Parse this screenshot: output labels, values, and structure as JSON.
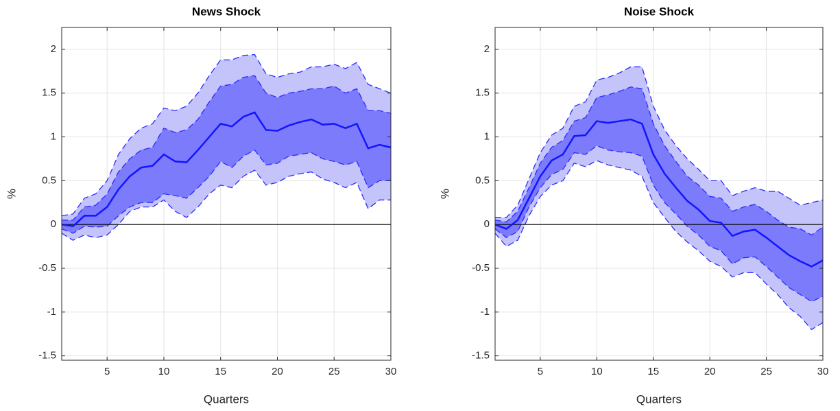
{
  "chart_data": [
    {
      "type": "line",
      "title": "News Shock",
      "xlabel": "Quarters",
      "ylabel": "%",
      "x": [
        1,
        2,
        3,
        4,
        5,
        6,
        7,
        8,
        9,
        10,
        11,
        12,
        13,
        14,
        15,
        16,
        17,
        18,
        19,
        20,
        21,
        22,
        23,
        24,
        25,
        26,
        27,
        28,
        29,
        30
      ],
      "xlim": [
        1,
        30
      ],
      "xticks": [
        5,
        10,
        15,
        20,
        25,
        30
      ],
      "ylim": [
        -1.55,
        2.25
      ],
      "yticks": [
        -1.5,
        -1,
        -0.5,
        0,
        0.5,
        1,
        1.5,
        2
      ],
      "grid": true,
      "hline": 0,
      "bands": [
        {
          "color": "#c4c4fb",
          "upper": [
            0.1,
            0.12,
            0.3,
            0.35,
            0.5,
            0.8,
            0.98,
            1.1,
            1.15,
            1.33,
            1.3,
            1.35,
            1.5,
            1.7,
            1.88,
            1.88,
            1.93,
            1.94,
            1.72,
            1.68,
            1.72,
            1.74,
            1.8,
            1.8,
            1.83,
            1.78,
            1.85,
            1.6,
            1.55,
            1.5
          ],
          "lower": [
            -0.1,
            -0.18,
            -0.12,
            -0.15,
            -0.12,
            0.0,
            0.15,
            0.2,
            0.2,
            0.28,
            0.15,
            0.08,
            0.2,
            0.35,
            0.45,
            0.42,
            0.55,
            0.62,
            0.45,
            0.48,
            0.55,
            0.58,
            0.6,
            0.52,
            0.48,
            0.42,
            0.48,
            0.18,
            0.28,
            0.28
          ]
        },
        {
          "color": "#7b7bfb",
          "upper": [
            0.05,
            0.05,
            0.2,
            0.22,
            0.35,
            0.6,
            0.75,
            0.85,
            0.88,
            1.1,
            1.05,
            1.08,
            1.2,
            1.4,
            1.58,
            1.6,
            1.68,
            1.7,
            1.5,
            1.45,
            1.5,
            1.52,
            1.55,
            1.55,
            1.58,
            1.5,
            1.55,
            1.3,
            1.3,
            1.27
          ],
          "lower": [
            -0.05,
            -0.1,
            -0.02,
            -0.03,
            -0.02,
            0.1,
            0.2,
            0.25,
            0.25,
            0.35,
            0.33,
            0.3,
            0.42,
            0.55,
            0.72,
            0.65,
            0.78,
            0.85,
            0.68,
            0.7,
            0.78,
            0.8,
            0.82,
            0.75,
            0.72,
            0.68,
            0.72,
            0.42,
            0.5,
            0.5
          ]
        }
      ],
      "band_edge_color": "#2a2aff",
      "series": [
        {
          "color": "#1414ff",
          "values": [
            0,
            -0.02,
            0.1,
            0.1,
            0.2,
            0.4,
            0.55,
            0.65,
            0.67,
            0.8,
            0.72,
            0.71,
            0.85,
            1.0,
            1.15,
            1.12,
            1.23,
            1.28,
            1.08,
            1.07,
            1.13,
            1.17,
            1.2,
            1.14,
            1.15,
            1.1,
            1.15,
            0.87,
            0.91,
            0.88
          ]
        }
      ]
    },
    {
      "type": "line",
      "title": "Noise Shock",
      "xlabel": "Quarters",
      "ylabel": "%",
      "x": [
        1,
        2,
        3,
        4,
        5,
        6,
        7,
        8,
        9,
        10,
        11,
        12,
        13,
        14,
        15,
        16,
        17,
        18,
        19,
        20,
        21,
        22,
        23,
        24,
        25,
        26,
        27,
        28,
        29,
        30
      ],
      "xlim": [
        1,
        30
      ],
      "xticks": [
        5,
        10,
        15,
        20,
        25,
        30
      ],
      "ylim": [
        -1.55,
        2.25
      ],
      "yticks": [
        -1.5,
        -1,
        -0.5,
        0,
        0.5,
        1,
        1.5,
        2
      ],
      "grid": true,
      "hline": 0,
      "bands": [
        {
          "color": "#c4c4fb",
          "upper": [
            0.08,
            0.08,
            0.22,
            0.52,
            0.82,
            1.02,
            1.1,
            1.35,
            1.4,
            1.65,
            1.68,
            1.73,
            1.8,
            1.8,
            1.35,
            1.08,
            0.9,
            0.75,
            0.63,
            0.5,
            0.5,
            0.33,
            0.38,
            0.42,
            0.38,
            0.38,
            0.3,
            0.22,
            0.25,
            0.28
          ],
          "lower": [
            -0.1,
            -0.25,
            -0.18,
            0.1,
            0.32,
            0.45,
            0.5,
            0.7,
            0.66,
            0.73,
            0.68,
            0.65,
            0.62,
            0.55,
            0.25,
            0.08,
            -0.08,
            -0.2,
            -0.3,
            -0.42,
            -0.48,
            -0.6,
            -0.55,
            -0.55,
            -0.68,
            -0.8,
            -0.95,
            -1.05,
            -1.2,
            -1.12
          ]
        },
        {
          "color": "#7b7bfb",
          "upper": [
            0.05,
            0.03,
            0.15,
            0.42,
            0.7,
            0.88,
            0.96,
            1.18,
            1.22,
            1.45,
            1.48,
            1.52,
            1.57,
            1.55,
            1.15,
            0.9,
            0.72,
            0.55,
            0.45,
            0.32,
            0.3,
            0.15,
            0.2,
            0.23,
            0.15,
            0.05,
            -0.03,
            -0.05,
            -0.12,
            -0.03
          ],
          "lower": [
            -0.05,
            -0.15,
            -0.08,
            0.2,
            0.42,
            0.57,
            0.63,
            0.82,
            0.8,
            0.9,
            0.85,
            0.83,
            0.82,
            0.78,
            0.45,
            0.25,
            0.12,
            -0.02,
            -0.12,
            -0.25,
            -0.3,
            -0.45,
            -0.38,
            -0.37,
            -0.48,
            -0.6,
            -0.72,
            -0.8,
            -0.88,
            -0.82
          ]
        }
      ],
      "band_edge_color": "#2a2aff",
      "series": [
        {
          "color": "#1414ff",
          "values": [
            0,
            -0.05,
            0.05,
            0.3,
            0.55,
            0.73,
            0.8,
            1.01,
            1.02,
            1.18,
            1.16,
            1.18,
            1.2,
            1.15,
            0.8,
            0.58,
            0.42,
            0.27,
            0.17,
            0.04,
            0.02,
            -0.13,
            -0.08,
            -0.06,
            -0.15,
            -0.25,
            -0.35,
            -0.42,
            -0.48,
            -0.41
          ]
        }
      ]
    }
  ]
}
